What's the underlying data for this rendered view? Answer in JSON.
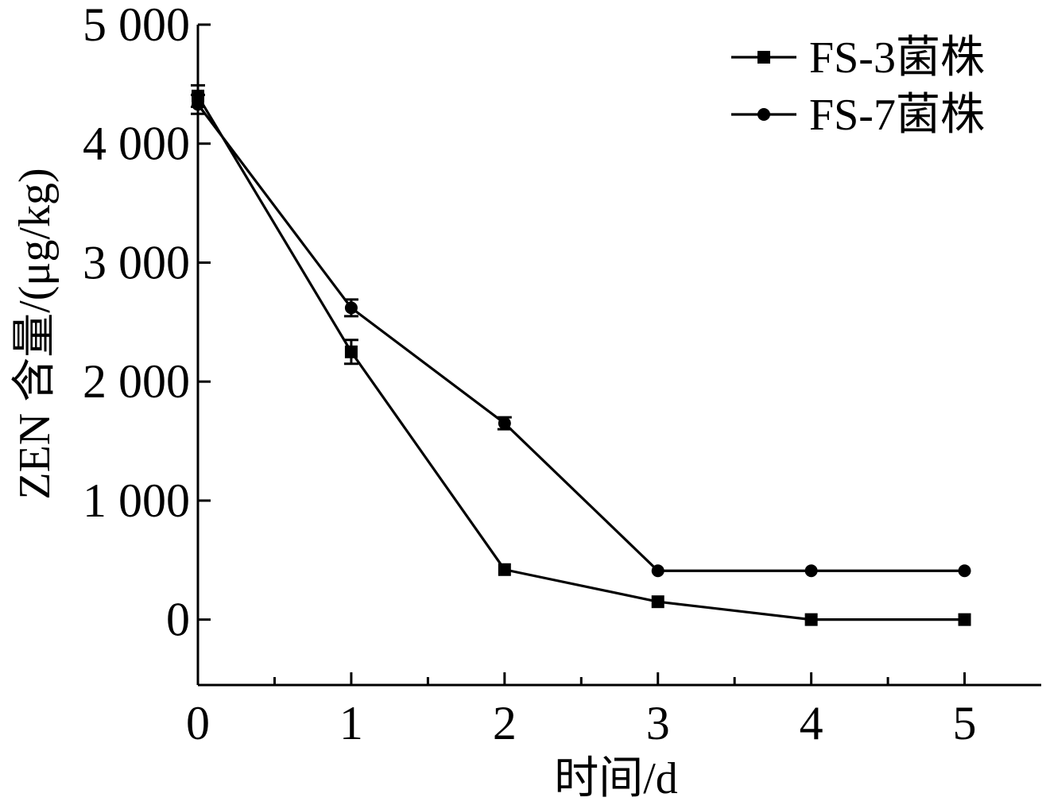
{
  "chart_data": {
    "type": "line",
    "x": [
      0,
      1,
      2,
      3,
      4,
      5
    ],
    "xlabel": "时间/d",
    "ylabel": "ZEN 含量/(μg/kg)",
    "xlim": [
      0,
      5.5
    ],
    "ylim": [
      -550,
      5000
    ],
    "xticks": [
      0,
      1,
      2,
      3,
      4,
      5
    ],
    "xtick_labels": [
      "0",
      "1",
      "2",
      "3",
      "4",
      "5"
    ],
    "xminor_ticks": [
      0.5,
      1.5,
      2.5,
      3.5,
      4.5
    ],
    "yticks": [
      0,
      1000,
      2000,
      3000,
      4000,
      5000
    ],
    "ytick_labels": [
      "0",
      "1 000",
      "2 000",
      "3 000",
      "4 000",
      "5 000"
    ],
    "grid": false,
    "legend_position": "top-right",
    "series": [
      {
        "name": "FS-3菌株",
        "marker": "square",
        "color": "#000000",
        "values": [
          4400,
          2250,
          420,
          150,
          0,
          0
        ],
        "errors": [
          90,
          100,
          0,
          0,
          0,
          0
        ]
      },
      {
        "name": "FS-7菌株",
        "marker": "circle",
        "color": "#000000",
        "values": [
          4330,
          2620,
          1650,
          410,
          410,
          410
        ],
        "errors": [
          80,
          70,
          50,
          0,
          0,
          0
        ]
      }
    ]
  }
}
